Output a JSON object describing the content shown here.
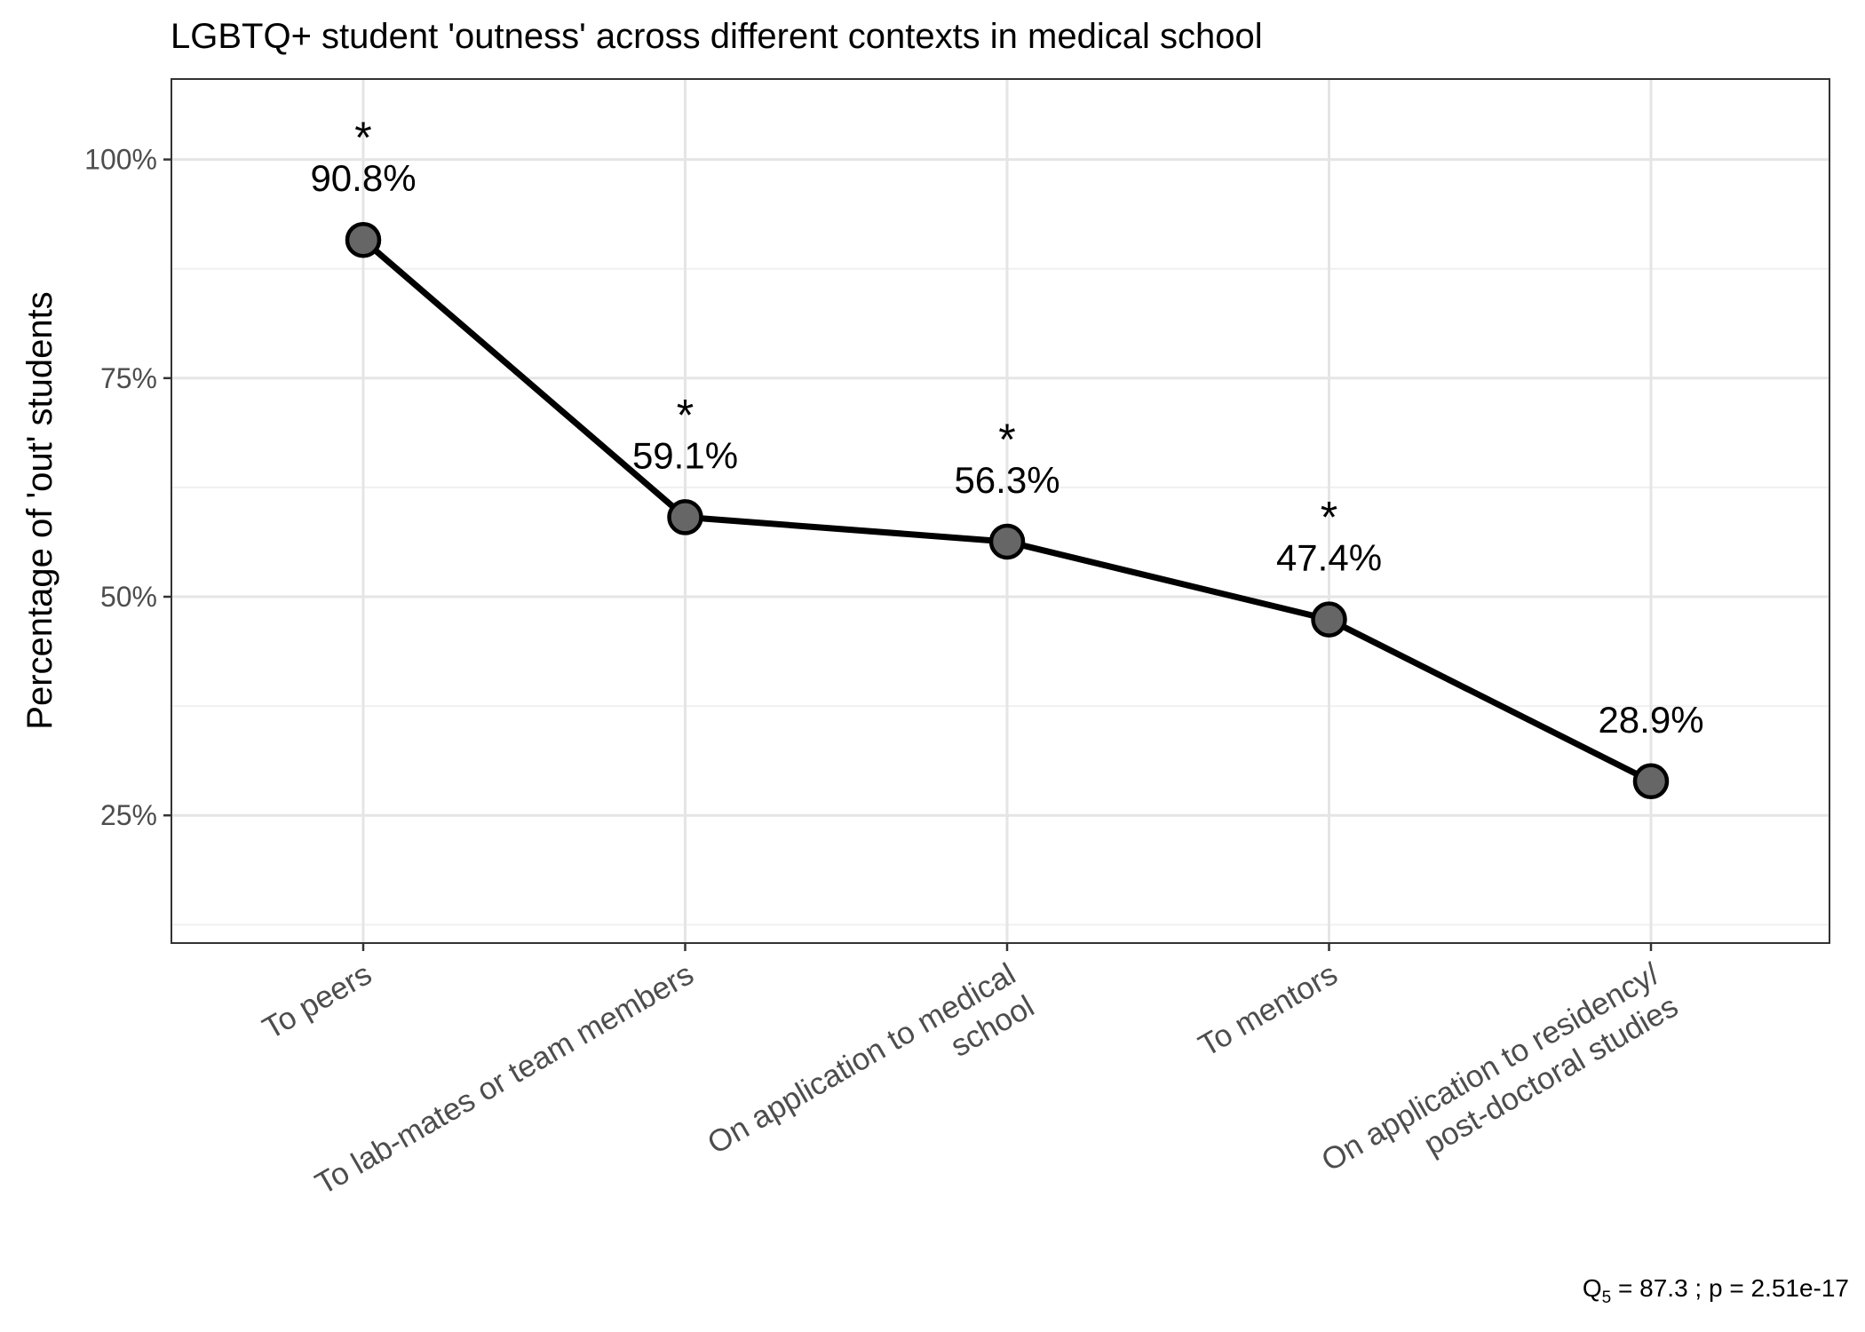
{
  "chart_data": {
    "type": "line",
    "title": "LGBTQ+ student 'outness' across different contexts in medical school",
    "xlabel": "",
    "ylabel": "Percentage of 'out' students",
    "categories": [
      [
        "To peers"
      ],
      [
        "To lab-mates or team members"
      ],
      [
        "On application to medical",
        "school"
      ],
      [
        "To mentors"
      ],
      [
        "On application to residency/",
        "post-doctoral studies"
      ]
    ],
    "values": [
      90.8,
      59.1,
      56.3,
      47.4,
      28.9
    ],
    "data_labels": [
      "90.8%",
      "59.1%",
      "56.3%",
      "47.4%",
      "28.9%"
    ],
    "significance": [
      "*",
      "*",
      "*",
      "*",
      ""
    ],
    "ylim": [
      10.4,
      109.2
    ],
    "yticks": [
      25,
      50,
      75,
      100
    ],
    "ytick_labels": [
      "25%",
      "50%",
      "75%",
      "100%"
    ],
    "grid": true,
    "legend": "none",
    "annotation": {
      "stat_symbol": "Q",
      "stat_subscript": "5",
      "stat_rest": " = 87.3 ;  p = 2.51e-17"
    },
    "colors": {
      "line": "#000000",
      "point_fill": "#666666",
      "grid": "#e5e5e5",
      "tick_text": "#4d4d4d"
    }
  }
}
